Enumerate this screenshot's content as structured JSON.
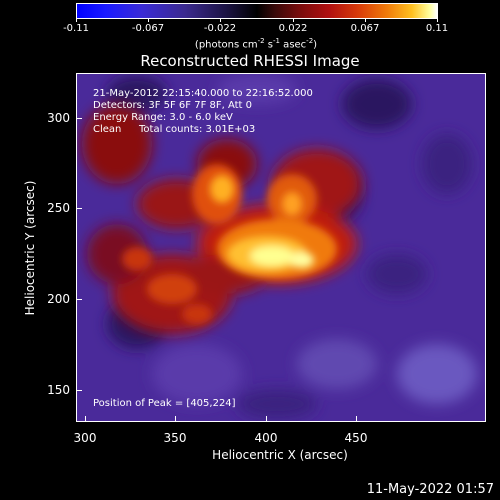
{
  "colorbar": {
    "ticks": [
      "-0.11",
      "-0.067",
      "-0.022",
      "0.022",
      "0.067",
      "0.11"
    ],
    "units_text": "(photons cm",
    "units_exp1": "-2",
    "units_mid1": " s",
    "units_exp2": "-1",
    "units_mid2": " asec",
    "units_exp3": "-2",
    "units_end": ")"
  },
  "title": "Reconstructed RHESSI Image",
  "info": {
    "time_range": "21-May-2012 22:15:40.000 to 22:16:52.000",
    "detectors": "Detectors: 3F 5F 6F 7F 8F, Att 0",
    "energy": "Energy Range: 3.0 - 6.0 keV",
    "method": "Clean",
    "counts": "Total counts: 3.01E+03",
    "peak": "Position of Peak = [405,224]"
  },
  "axes": {
    "xlabel": "Heliocentric X (arcsec)",
    "ylabel": "Heliocentric Y (arcsec)",
    "xticks": [
      "300",
      "350",
      "400",
      "450"
    ],
    "yticks": [
      "300",
      "250",
      "200",
      "150"
    ]
  },
  "colors": {
    "background": "#000000",
    "low": "#4a2a9a",
    "mid": "#b01010",
    "peak": "#ffff90"
  },
  "footer": {
    "date": "11-May-2022 01:57"
  }
}
